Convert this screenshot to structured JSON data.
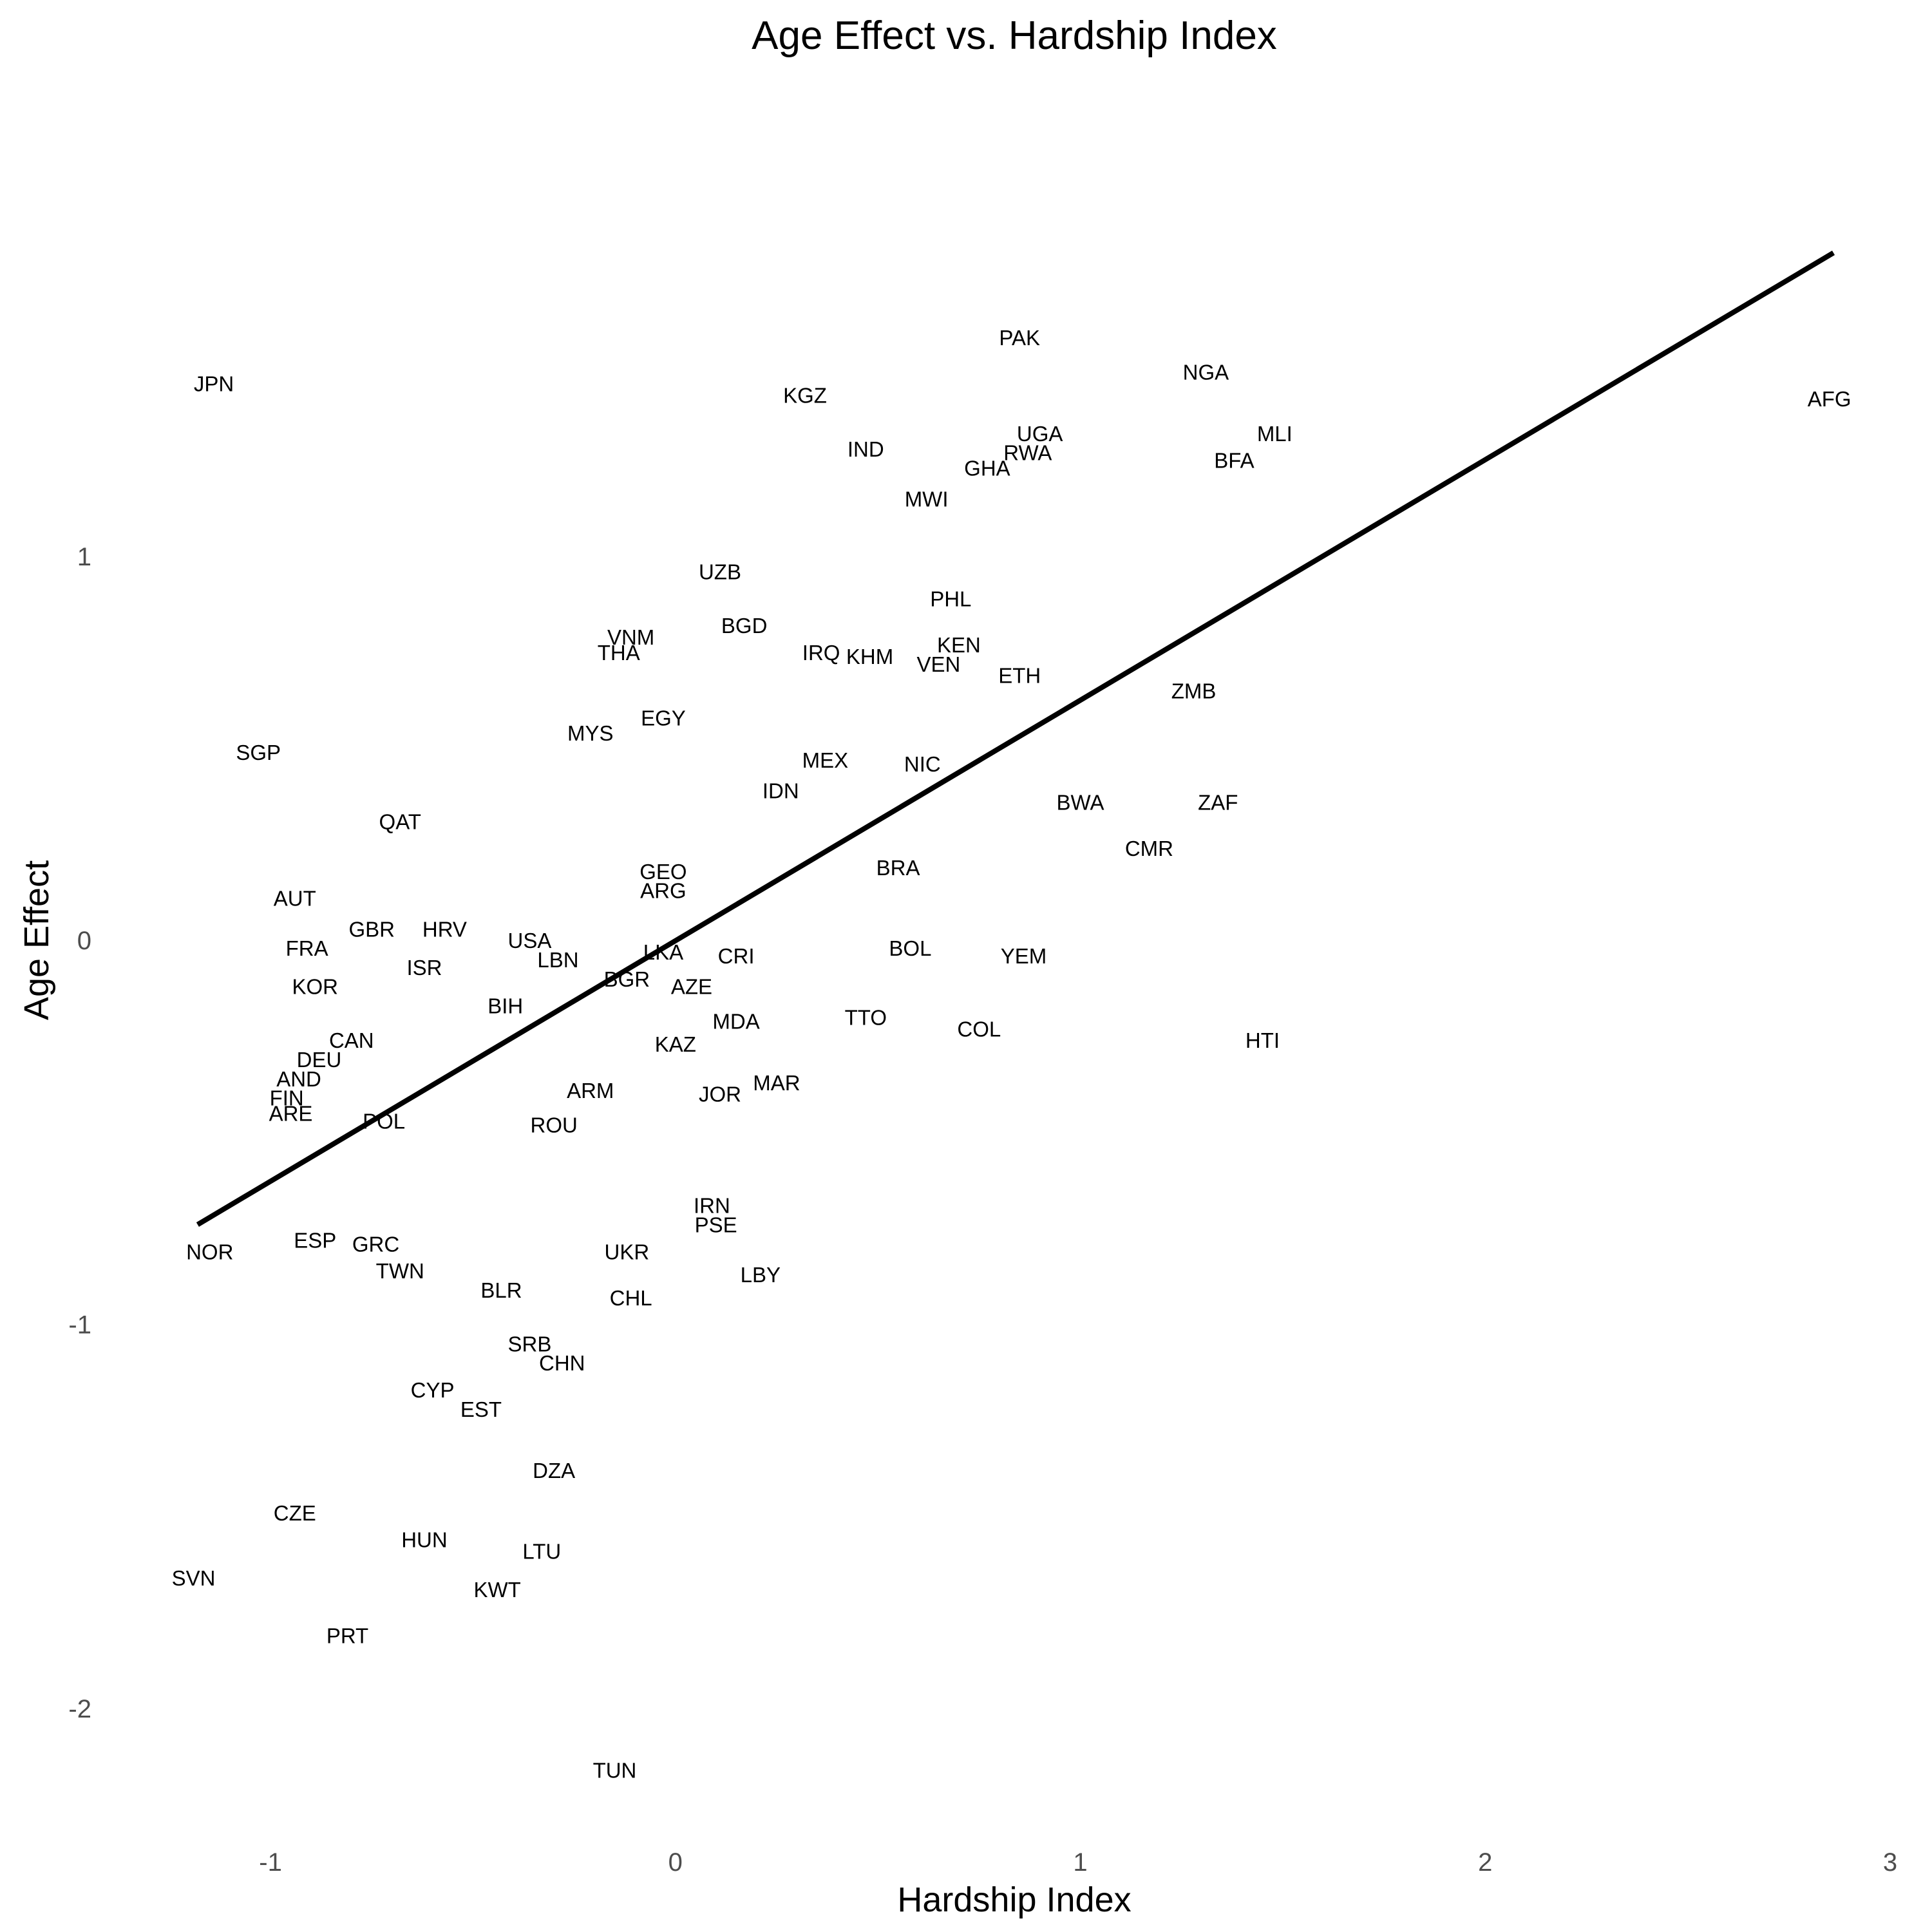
{
  "chart_data": {
    "type": "scatter",
    "title": "Age Effect vs. Hardship Index",
    "xlabel": "Hardship Index",
    "ylabel": "Age Effect",
    "xlim": [
      -1.35,
      3.0
    ],
    "ylim": [
      -2.28,
      2.18
    ],
    "x_ticks": [
      -1,
      0,
      1,
      2,
      3
    ],
    "y_ticks": [
      -2,
      -1,
      0,
      1
    ],
    "x_tick_labels": [
      "-1",
      "0",
      "1",
      "2",
      "3"
    ],
    "y_tick_labels": [
      "-2",
      "-1",
      "0",
      "1"
    ],
    "grid": false,
    "legend": "none",
    "marker": "text-label",
    "trend_line": {
      "x": [
        -1.18,
        2.86
      ],
      "y": [
        -0.74,
        1.79
      ],
      "color": "#000000"
    },
    "points": [
      {
        "label": "JPN",
        "x": -1.14,
        "y": 1.45
      },
      {
        "label": "PAK",
        "x": 0.85,
        "y": 1.57
      },
      {
        "label": "NGA",
        "x": 1.31,
        "y": 1.48
      },
      {
        "label": "AFG",
        "x": 2.85,
        "y": 1.41
      },
      {
        "label": "KGZ",
        "x": 0.32,
        "y": 1.42
      },
      {
        "label": "MLI",
        "x": 1.48,
        "y": 1.32
      },
      {
        "label": "UGA",
        "x": 0.9,
        "y": 1.32
      },
      {
        "label": "RWA",
        "x": 0.87,
        "y": 1.27
      },
      {
        "label": "IND",
        "x": 0.47,
        "y": 1.28
      },
      {
        "label": "BFA",
        "x": 1.38,
        "y": 1.25
      },
      {
        "label": "GHA",
        "x": 0.77,
        "y": 1.23
      },
      {
        "label": "MWI",
        "x": 0.62,
        "y": 1.15
      },
      {
        "label": "UZB",
        "x": 0.11,
        "y": 0.96
      },
      {
        "label": "PHL",
        "x": 0.68,
        "y": 0.89
      },
      {
        "label": "BGD",
        "x": 0.17,
        "y": 0.82
      },
      {
        "label": "VNM",
        "x": -0.11,
        "y": 0.79
      },
      {
        "label": "KEN",
        "x": 0.7,
        "y": 0.77
      },
      {
        "label": "THA",
        "x": -0.14,
        "y": 0.75
      },
      {
        "label": "IRQ",
        "x": 0.36,
        "y": 0.75
      },
      {
        "label": "KHM",
        "x": 0.48,
        "y": 0.74
      },
      {
        "label": "VEN",
        "x": 0.65,
        "y": 0.72
      },
      {
        "label": "ETH",
        "x": 0.85,
        "y": 0.69
      },
      {
        "label": "ZMB",
        "x": 1.28,
        "y": 0.65
      },
      {
        "label": "EGY",
        "x": -0.03,
        "y": 0.58
      },
      {
        "label": "MYS",
        "x": -0.21,
        "y": 0.54
      },
      {
        "label": "SGP",
        "x": -1.03,
        "y": 0.49
      },
      {
        "label": "MEX",
        "x": 0.37,
        "y": 0.47
      },
      {
        "label": "NIC",
        "x": 0.61,
        "y": 0.46
      },
      {
        "label": "IDN",
        "x": 0.26,
        "y": 0.39
      },
      {
        "label": "BWA",
        "x": 1.0,
        "y": 0.36
      },
      {
        "label": "ZAF",
        "x": 1.34,
        "y": 0.36
      },
      {
        "label": "QAT",
        "x": -0.68,
        "y": 0.31
      },
      {
        "label": "CMR",
        "x": 1.17,
        "y": 0.24
      },
      {
        "label": "BRA",
        "x": 0.55,
        "y": 0.19
      },
      {
        "label": "GEO",
        "x": -0.03,
        "y": 0.18
      },
      {
        "label": "ARG",
        "x": -0.03,
        "y": 0.13
      },
      {
        "label": "AUT",
        "x": -0.94,
        "y": 0.11
      },
      {
        "label": "GBR",
        "x": -0.75,
        "y": 0.03
      },
      {
        "label": "HRV",
        "x": -0.57,
        "y": 0.03
      },
      {
        "label": "USA",
        "x": -0.36,
        "y": -0.0
      },
      {
        "label": "FRA",
        "x": -0.91,
        "y": -0.02
      },
      {
        "label": "BOL",
        "x": 0.58,
        "y": -0.02
      },
      {
        "label": "LKA",
        "x": -0.03,
        "y": -0.03
      },
      {
        "label": "CRI",
        "x": 0.15,
        "y": -0.04
      },
      {
        "label": "YEM",
        "x": 0.86,
        "y": -0.04
      },
      {
        "label": "LBN",
        "x": -0.29,
        "y": -0.05
      },
      {
        "label": "ISR",
        "x": -0.62,
        "y": -0.07
      },
      {
        "label": "BGR",
        "x": -0.12,
        "y": -0.1
      },
      {
        "label": "KOR",
        "x": -0.89,
        "y": -0.12
      },
      {
        "label": "AZE",
        "x": 0.04,
        "y": -0.12
      },
      {
        "label": "BIH",
        "x": -0.42,
        "y": -0.17
      },
      {
        "label": "TTO",
        "x": 0.47,
        "y": -0.2
      },
      {
        "label": "MDA",
        "x": 0.15,
        "y": -0.21
      },
      {
        "label": "COL",
        "x": 0.75,
        "y": -0.23
      },
      {
        "label": "CAN",
        "x": -0.8,
        "y": -0.26
      },
      {
        "label": "HTI",
        "x": 1.45,
        "y": -0.26
      },
      {
        "label": "KAZ",
        "x": 0.0,
        "y": -0.27
      },
      {
        "label": "DEU",
        "x": -0.88,
        "y": -0.31
      },
      {
        "label": "AND",
        "x": -0.93,
        "y": -0.36
      },
      {
        "label": "MAR",
        "x": 0.25,
        "y": -0.37
      },
      {
        "label": "ARM",
        "x": -0.21,
        "y": -0.39
      },
      {
        "label": "JOR",
        "x": 0.11,
        "y": -0.4
      },
      {
        "label": "FIN",
        "x": -0.96,
        "y": -0.41
      },
      {
        "label": "ARE",
        "x": -0.95,
        "y": -0.45
      },
      {
        "label": "POL",
        "x": -0.72,
        "y": -0.47
      },
      {
        "label": "ROU",
        "x": -0.3,
        "y": -0.48
      },
      {
        "label": "IRN",
        "x": 0.09,
        "y": -0.69
      },
      {
        "label": "PSE",
        "x": 0.1,
        "y": -0.74
      },
      {
        "label": "ESP",
        "x": -0.89,
        "y": -0.78
      },
      {
        "label": "NOR",
        "x": -1.15,
        "y": -0.81
      },
      {
        "label": "GRC",
        "x": -0.74,
        "y": -0.79
      },
      {
        "label": "UKR",
        "x": -0.12,
        "y": -0.81
      },
      {
        "label": "TWN",
        "x": -0.68,
        "y": -0.86
      },
      {
        "label": "LBY",
        "x": 0.21,
        "y": -0.87
      },
      {
        "label": "BLR",
        "x": -0.43,
        "y": -0.91
      },
      {
        "label": "CHL",
        "x": -0.11,
        "y": -0.93
      },
      {
        "label": "SRB",
        "x": -0.36,
        "y": -1.05
      },
      {
        "label": "CHN",
        "x": -0.28,
        "y": -1.1
      },
      {
        "label": "CYP",
        "x": -0.6,
        "y": -1.17
      },
      {
        "label": "EST",
        "x": -0.48,
        "y": -1.22
      },
      {
        "label": "DZA",
        "x": -0.3,
        "y": -1.38
      },
      {
        "label": "CZE",
        "x": -0.94,
        "y": -1.49
      },
      {
        "label": "HUN",
        "x": -0.62,
        "y": -1.56
      },
      {
        "label": "LTU",
        "x": -0.33,
        "y": -1.59
      },
      {
        "label": "SVN",
        "x": -1.19,
        "y": -1.66
      },
      {
        "label": "KWT",
        "x": -0.44,
        "y": -1.69
      },
      {
        "label": "PRT",
        "x": -0.81,
        "y": -1.81
      },
      {
        "label": "TUN",
        "x": -0.15,
        "y": -2.16
      }
    ]
  }
}
